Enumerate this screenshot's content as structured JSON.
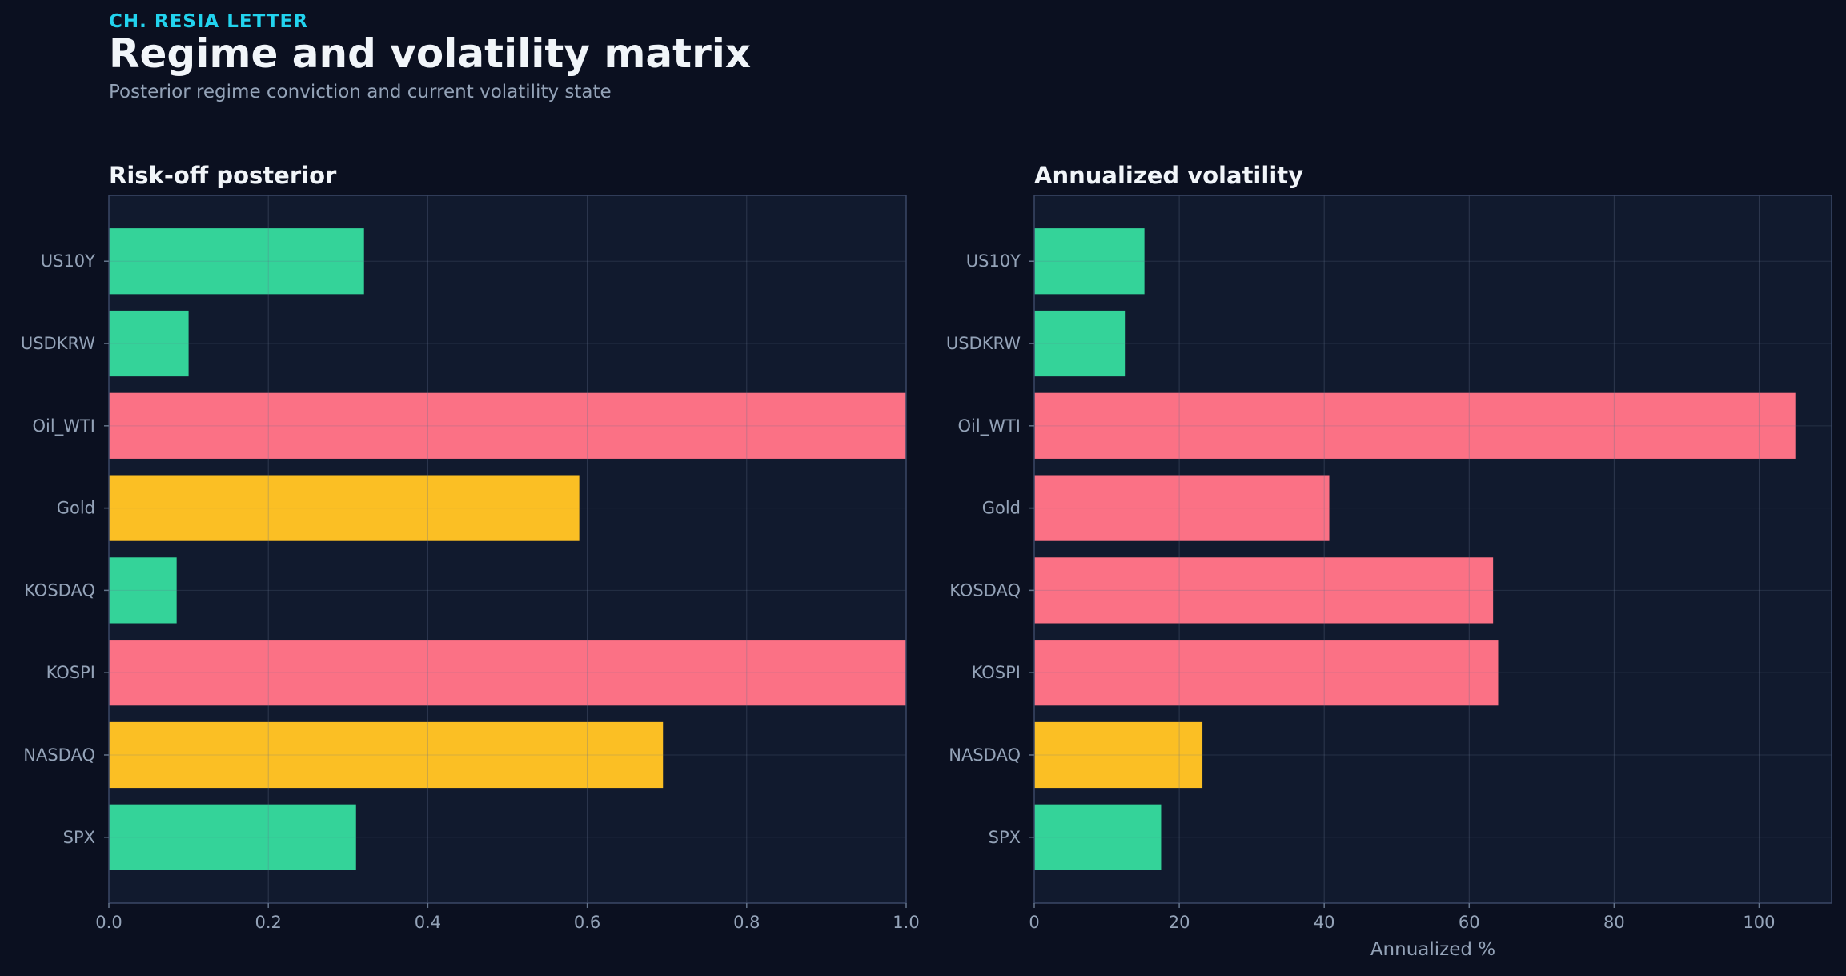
{
  "header": {
    "kicker": "CH. RESIA LETTER",
    "title": "Regime and volatility matrix",
    "subtitle": "Posterior regime conviction and current volatility state"
  },
  "colors": {
    "background": "#0b1020",
    "panel": "#111a2e",
    "green": "#34d399",
    "red": "#fb7185",
    "amber": "#fbbf24"
  },
  "chart_data": [
    {
      "type": "bar",
      "orientation": "horizontal",
      "title": "Risk-off posterior",
      "xlabel": "",
      "categories": [
        "US10Y",
        "USDKRW",
        "Oil_WTI",
        "Gold",
        "KOSDAQ",
        "KOSPI",
        "NASDAQ",
        "SPX"
      ],
      "values": [
        0.32,
        0.1,
        1.0,
        0.59,
        0.085,
        1.0,
        0.695,
        0.31
      ],
      "bar_colors": [
        "green",
        "green",
        "red",
        "amber",
        "green",
        "red",
        "amber",
        "green"
      ],
      "xlim": [
        0,
        1.0
      ],
      "xticks": [
        0.0,
        0.2,
        0.4,
        0.6,
        0.8,
        1.0
      ],
      "xtick_labels": [
        "0.0",
        "0.2",
        "0.4",
        "0.6",
        "0.8",
        "1.0"
      ],
      "grid": true
    },
    {
      "type": "bar",
      "orientation": "horizontal",
      "title": "Annualized volatility",
      "xlabel": "Annualized %",
      "categories": [
        "US10Y",
        "USDKRW",
        "Oil_WTI",
        "Gold",
        "KOSDAQ",
        "KOSPI",
        "NASDAQ",
        "SPX"
      ],
      "values": [
        15.2,
        12.5,
        105.0,
        40.7,
        63.3,
        64.0,
        23.2,
        17.5
      ],
      "bar_colors": [
        "green",
        "green",
        "red",
        "red",
        "red",
        "red",
        "amber",
        "green"
      ],
      "xlim": [
        0,
        110
      ],
      "xticks": [
        0,
        20,
        40,
        60,
        80,
        100
      ],
      "xtick_labels": [
        "0",
        "20",
        "40",
        "60",
        "80",
        "100"
      ],
      "grid": true
    }
  ]
}
